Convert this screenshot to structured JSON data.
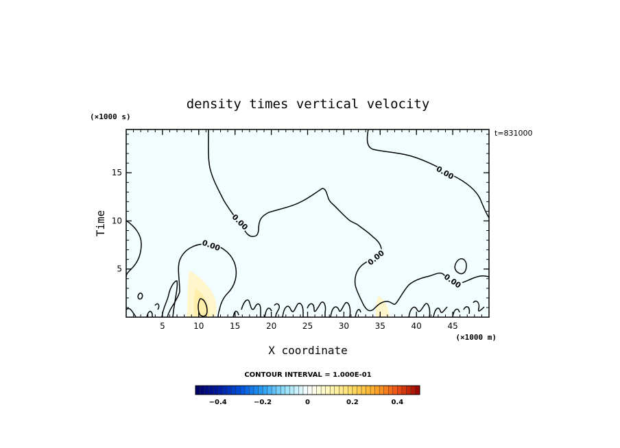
{
  "chart_data": {
    "type": "contour",
    "title": "density times vertical velocity",
    "xlabel": "X coordinate",
    "ylabel": "Time",
    "x_unit": "(×1000 m)",
    "y_unit": "(×1000 s)",
    "timestamp": "t=831000",
    "xlim": [
      0,
      50
    ],
    "ylim": [
      0,
      19.5
    ],
    "xticks": [
      5,
      10,
      15,
      20,
      25,
      30,
      35,
      40,
      45
    ],
    "yticks": [
      5,
      10,
      15
    ],
    "contour_interval_text": "CONTOUR INTERVAL = 1.000E-01",
    "contour_labels": [
      "0.00",
      "0.00",
      "0.00",
      "0.00",
      "0.00"
    ],
    "colorbar": {
      "min": -0.5,
      "max": 0.5,
      "ticks": [
        {
          "value": -0.4,
          "label": "−0.4"
        },
        {
          "value": -0.2,
          "label": "−0.2"
        },
        {
          "value": 0,
          "label": "0"
        },
        {
          "value": 0.2,
          "label": "0.2"
        },
        {
          "value": 0.4,
          "label": "0.4"
        }
      ]
    },
    "colors": {
      "background_field": "#f1fdff",
      "positive_field": "#fff6cc",
      "contour_line": "#000000",
      "axes": "#000000"
    }
  }
}
